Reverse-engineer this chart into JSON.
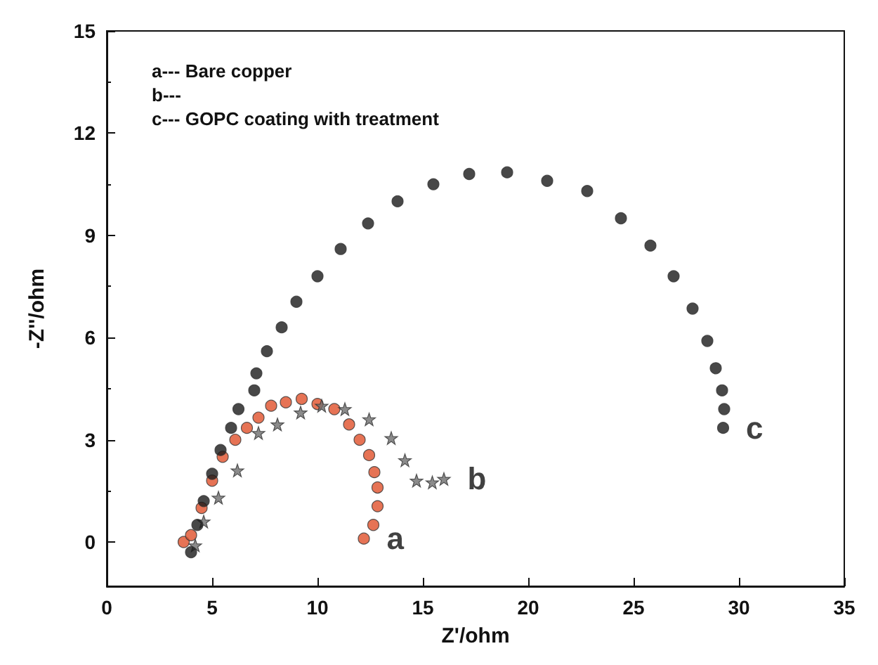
{
  "chart_data": {
    "type": "scatter",
    "xlabel": "Z'/ohm",
    "ylabel": "-Z''/ohm",
    "xlim": [
      0,
      35
    ],
    "xticks": [
      0,
      5,
      10,
      15,
      20,
      25,
      30,
      35
    ],
    "ylim": [
      -1.3,
      15
    ],
    "yticks": [
      0,
      3,
      6,
      9,
      12,
      15
    ],
    "grid": false,
    "legend": false,
    "series": [
      {
        "name": "a",
        "color": "#e0502a",
        "marker": "circle",
        "x": [
          3.65,
          4.0,
          4.5,
          5.0,
          5.5,
          6.1,
          6.65,
          7.2,
          7.8,
          8.5,
          9.25,
          10.0,
          10.8,
          11.5,
          12.0,
          12.45,
          12.7,
          12.85,
          12.85,
          12.65,
          12.2
        ],
        "values": [
          0,
          0.2,
          1.0,
          1.8,
          2.5,
          3.0,
          3.35,
          3.65,
          4.0,
          4.1,
          4.2,
          4.05,
          3.9,
          3.45,
          3.0,
          2.55,
          2.05,
          1.6,
          1.05,
          0.5,
          0.1
        ]
      },
      {
        "name": "b",
        "color": "#6e6e6e",
        "marker": "star",
        "x": [
          4.2,
          4.6,
          5.3,
          6.2,
          7.2,
          8.1,
          9.2,
          10.2,
          11.3,
          12.45,
          13.5,
          14.15,
          14.7,
          15.45,
          16.0
        ],
        "values": [
          -0.1,
          0.6,
          1.3,
          2.1,
          3.2,
          3.45,
          3.8,
          4.0,
          3.9,
          3.6,
          3.05,
          2.4,
          1.8,
          1.75,
          1.85
        ]
      },
      {
        "name": "c",
        "color": "#1a1a1a",
        "marker": "circle",
        "x": [
          4.0,
          4.3,
          4.6,
          5.0,
          5.4,
          5.9,
          6.25,
          7.0,
          7.1,
          7.6,
          8.3,
          9.0,
          10.0,
          11.1,
          12.4,
          13.8,
          15.5,
          17.2,
          19.0,
          20.9,
          22.8,
          24.4,
          25.8,
          26.9,
          27.8,
          28.5,
          28.9,
          29.2,
          29.3,
          29.25
        ],
        "values": [
          -0.3,
          0.5,
          1.2,
          2.0,
          2.7,
          3.35,
          3.9,
          4.45,
          4.95,
          5.6,
          6.3,
          7.05,
          7.8,
          8.6,
          9.35,
          10.0,
          10.5,
          10.8,
          10.85,
          10.6,
          10.3,
          9.5,
          8.7,
          7.8,
          6.85,
          5.9,
          5.1,
          4.45,
          3.9,
          3.35
        ]
      }
    ],
    "annotations": [
      "a--- Bare copper",
      "b---",
      "c--- GOPC coating with treatment"
    ]
  }
}
